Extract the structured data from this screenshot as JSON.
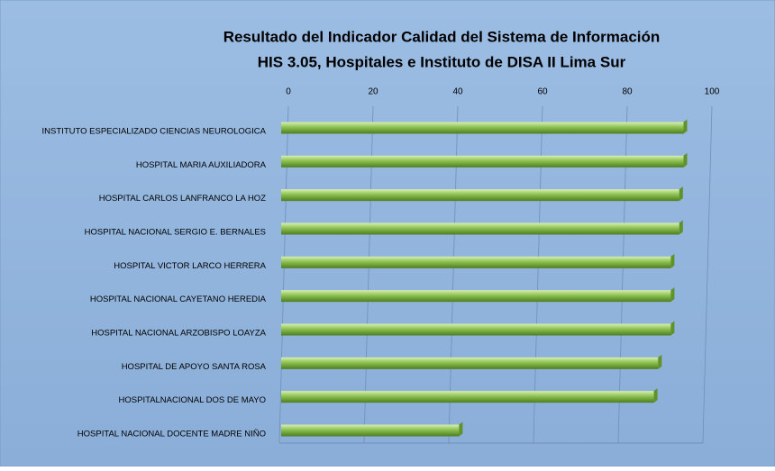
{
  "chart_data": {
    "type": "bar",
    "orientation": "horizontal",
    "title": [
      "Resultado del Indicador Calidad del Sistema de Información",
      "HIS 3.05, Hospitales e Instituto de DISA II Lima Sur"
    ],
    "categories": [
      "INSTITUTO ESPECIALIZADO CIENCIAS NEUROLOGICA",
      "HOSPITAL MARIA AUXILIADORA",
      "HOSPITAL CARLOS LANFRANCO LA HOZ",
      "HOSPITAL NACIONAL SERGIO E. BERNALES",
      "HOSPITAL VICTOR LARCO HERRERA",
      "HOSPITAL NACIONAL CAYETANO HEREDIA",
      "HOSPITAL NACIONAL ARZOBISPO LOAYZA",
      "HOSPITAL DE APOYO SANTA ROSA",
      "HOSPITALNACIONAL  DOS DE MAYO",
      "HOSPITAL NACIONAL DOCENTE MADRE NIÑO"
    ],
    "values": [
      95,
      95,
      94,
      94,
      92,
      92,
      92,
      89,
      88,
      42
    ],
    "color": "#8cc152",
    "xlim": [
      0,
      100
    ],
    "xticks": [
      0,
      20,
      40,
      60,
      80,
      100
    ],
    "grid": true
  }
}
